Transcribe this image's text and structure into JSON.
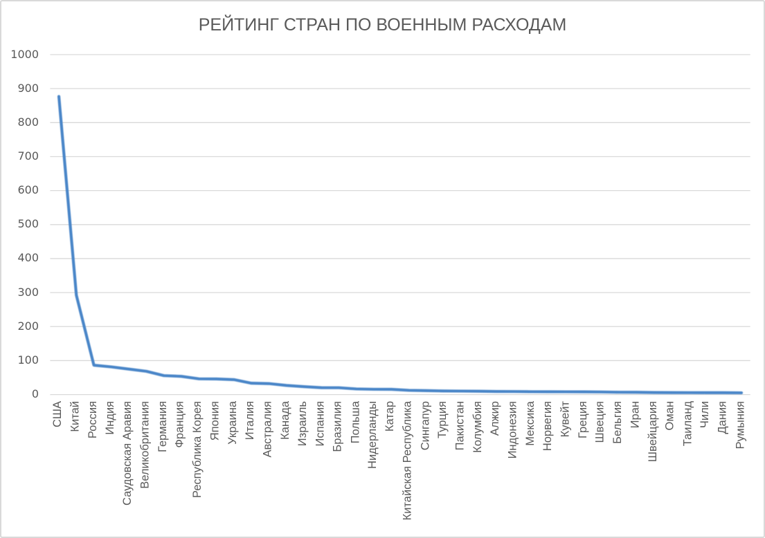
{
  "chart_data": {
    "type": "line",
    "title": "РЕЙТИНГ СТРАН ПО ВОЕННЫМ РАСХОДАМ",
    "categories": [
      "США",
      "Китай",
      "Россия",
      "Индия",
      "Саудовская Аравия",
      "Великобритания",
      "Германия",
      "Франция",
      "Республика Корея",
      "Япония",
      "Украина",
      "Италия",
      "Австралия",
      "Канада",
      "Израиль",
      "Испания",
      "Бразилия",
      "Польша",
      "Нидерланды",
      "Катар",
      "Китайская Республика",
      "Сингапур",
      "Турция",
      "Пакистан",
      "Колумбия",
      "Алжир",
      "Индонезия",
      "Мексика",
      "Норвегия",
      "Кувейт",
      "Греция",
      "Швеция",
      "Бельгия",
      "Иран",
      "Швейцария",
      "Оман",
      "Таиланд",
      "Чили",
      "Дания",
      "Румыния"
    ],
    "values": [
      877,
      292,
      86.4,
      81.4,
      75.0,
      68.5,
      55.8,
      53.6,
      46.4,
      46.0,
      44.0,
      33.5,
      32.3,
      26.9,
      23.4,
      20.3,
      20.2,
      16.6,
      15.6,
      15.4,
      12.5,
      11.7,
      10.6,
      10.3,
      9.9,
      9.1,
      9.0,
      8.5,
      8.4,
      8.2,
      8.1,
      7.7,
      6.9,
      6.8,
      6.1,
      5.8,
      5.7,
      5.6,
      5.5,
      5.2
    ],
    "xlabel": "",
    "ylabel": "",
    "ylim": [
      0,
      1000
    ],
    "ytick_step": 100,
    "ytick_labels": [
      "0",
      "100",
      "200",
      "300",
      "400",
      "500",
      "600",
      "700",
      "800",
      "900",
      "1000"
    ],
    "grid": true,
    "legend": "none",
    "x_label_rotation_deg": 90,
    "colors": {
      "series_line": "#4A86C8",
      "gridline": "#D9D9D9",
      "axis_line": "#D9D9D9",
      "text": "#595959",
      "frame_border": "#D9D9D9",
      "background": "#FFFFFF"
    }
  }
}
